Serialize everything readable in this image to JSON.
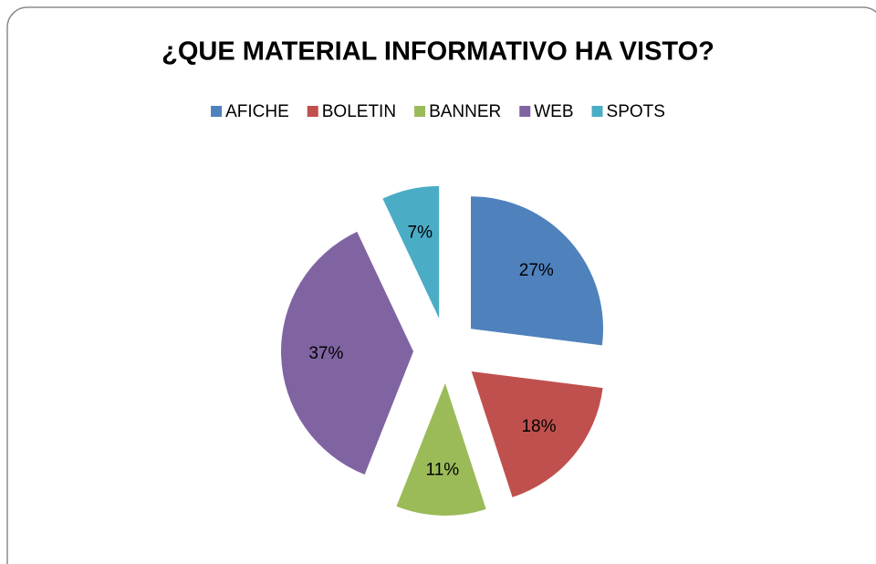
{
  "chart_data": {
    "type": "pie",
    "title": "¿QUE MATERIAL INFORMATIVO HA VISTO?",
    "categories": [
      "AFICHE",
      "BOLETIN",
      "BANNER",
      "WEB",
      "SPOTS"
    ],
    "values": [
      27,
      18,
      11,
      37,
      7
    ],
    "value_labels": [
      "27%",
      "18%",
      "11%",
      "37%",
      "7%"
    ],
    "colors": [
      "#4f81bd",
      "#c0504d",
      "#9bbb59",
      "#8064a2",
      "#4bacc6"
    ],
    "exploded": true,
    "legend": "top"
  }
}
